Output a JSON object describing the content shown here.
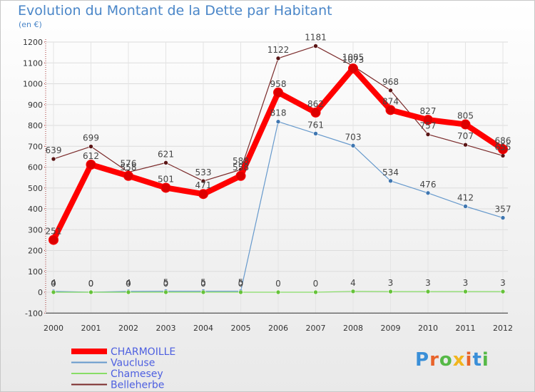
{
  "chart": {
    "title": "Evolution du Montant de la Dette par Habitant",
    "unit": "(en €)"
  },
  "logo_text": "Proxiti",
  "logo_colors": [
    "#3a8fd8",
    "#e8632a",
    "#56b947",
    "#f2b51d",
    "#e8632a",
    "#3a8fd8",
    "#56b947"
  ],
  "chart_data": {
    "type": "line",
    "title": "Evolution du Montant de la Dette par Habitant",
    "ylabel": "(en €)",
    "xlabel": "",
    "ylim": [
      -100,
      1200
    ],
    "yticks": [
      -100,
      0,
      100,
      200,
      300,
      400,
      500,
      600,
      700,
      800,
      900,
      1000,
      1100,
      1200
    ],
    "x": [
      "2000",
      "2001",
      "2002",
      "2003",
      "2004",
      "2005",
      "2006",
      "2007",
      "2008",
      "2009",
      "2010",
      "2011",
      "2012"
    ],
    "grid": true,
    "legend_position": "bottom-left",
    "series": [
      {
        "name": "CHARMOILLE",
        "color": "#ff0000",
        "values": [
          251,
          612,
          558,
          501,
          471,
          558,
          958,
          862,
          1073,
          874,
          827,
          805,
          686
        ]
      },
      {
        "name": "Vaucluse",
        "color": "#6699cc",
        "values": [
          4,
          0,
          4,
          5,
          5,
          5,
          818,
          761,
          703,
          534,
          476,
          412,
          357
        ]
      },
      {
        "name": "Chamesey",
        "color": "#88dd66",
        "values": [
          0,
          0,
          0,
          0,
          0,
          0,
          0,
          0,
          4,
          3,
          3,
          3,
          3
        ]
      },
      {
        "name": "Belleherbe",
        "color": "#7a2a2a",
        "values": [
          639,
          699,
          576,
          621,
          533,
          588,
          1122,
          1181,
          1085,
          968,
          757,
          707,
          655
        ]
      }
    ],
    "data_labels": [
      {
        "series": "Belleherbe",
        "values": [
          "639",
          "699",
          "576",
          "621",
          "533",
          "588",
          "1122",
          "1181",
          "1085",
          "968",
          "757",
          "707",
          "655"
        ]
      },
      {
        "series": "CHARMOILLE",
        "values": [
          "251",
          "612",
          "558",
          "501",
          "471",
          "558",
          "958",
          "862",
          "1073",
          "874",
          "827",
          "805",
          "686"
        ]
      },
      {
        "series": "Vaucluse",
        "values": [
          "4",
          "0",
          "4",
          "5",
          "5",
          "5",
          "818",
          "761",
          "703",
          "534",
          "476",
          "412",
          "357"
        ]
      },
      {
        "series": "Chamesey",
        "values": [
          "0",
          "0",
          "0",
          "0",
          "0",
          "0",
          "0",
          "0",
          "4",
          "3",
          "3",
          "3",
          "3"
        ]
      }
    ]
  }
}
